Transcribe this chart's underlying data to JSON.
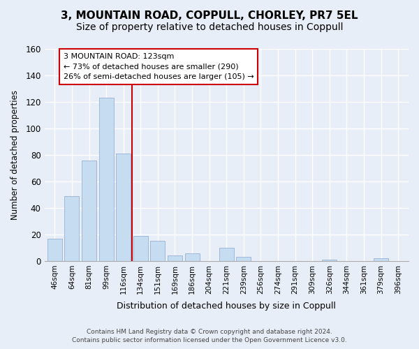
{
  "title": "3, MOUNTAIN ROAD, COPPULL, CHORLEY, PR7 5EL",
  "subtitle": "Size of property relative to detached houses in Coppull",
  "xlabel": "Distribution of detached houses by size in Coppull",
  "ylabel": "Number of detached properties",
  "bar_labels": [
    "46sqm",
    "64sqm",
    "81sqm",
    "99sqm",
    "116sqm",
    "134sqm",
    "151sqm",
    "169sqm",
    "186sqm",
    "204sqm",
    "221sqm",
    "239sqm",
    "256sqm",
    "274sqm",
    "291sqm",
    "309sqm",
    "326sqm",
    "344sqm",
    "361sqm",
    "379sqm",
    "396sqm"
  ],
  "bar_values": [
    17,
    49,
    76,
    123,
    81,
    19,
    15,
    4,
    6,
    0,
    10,
    3,
    0,
    0,
    0,
    0,
    1,
    0,
    0,
    2,
    0
  ],
  "bar_color": "#c6dcf0",
  "bar_edge_color": "#a0b8d8",
  "ylim": [
    0,
    160
  ],
  "yticks": [
    0,
    20,
    40,
    60,
    80,
    100,
    120,
    140,
    160
  ],
  "vline_idx": 4,
  "vline_color": "#cc0000",
  "annotation_title": "3 MOUNTAIN ROAD: 123sqm",
  "annotation_line1": "← 73% of detached houses are smaller (290)",
  "annotation_line2": "26% of semi-detached houses are larger (105) →",
  "annotation_box_color": "#ffffff",
  "annotation_box_edge": "#cc0000",
  "footer_line1": "Contains HM Land Registry data © Crown copyright and database right 2024.",
  "footer_line2": "Contains public sector information licensed under the Open Government Licence v3.0.",
  "background_color": "#e8eef8",
  "grid_color": "#ffffff",
  "title_fontsize": 11,
  "subtitle_fontsize": 10
}
